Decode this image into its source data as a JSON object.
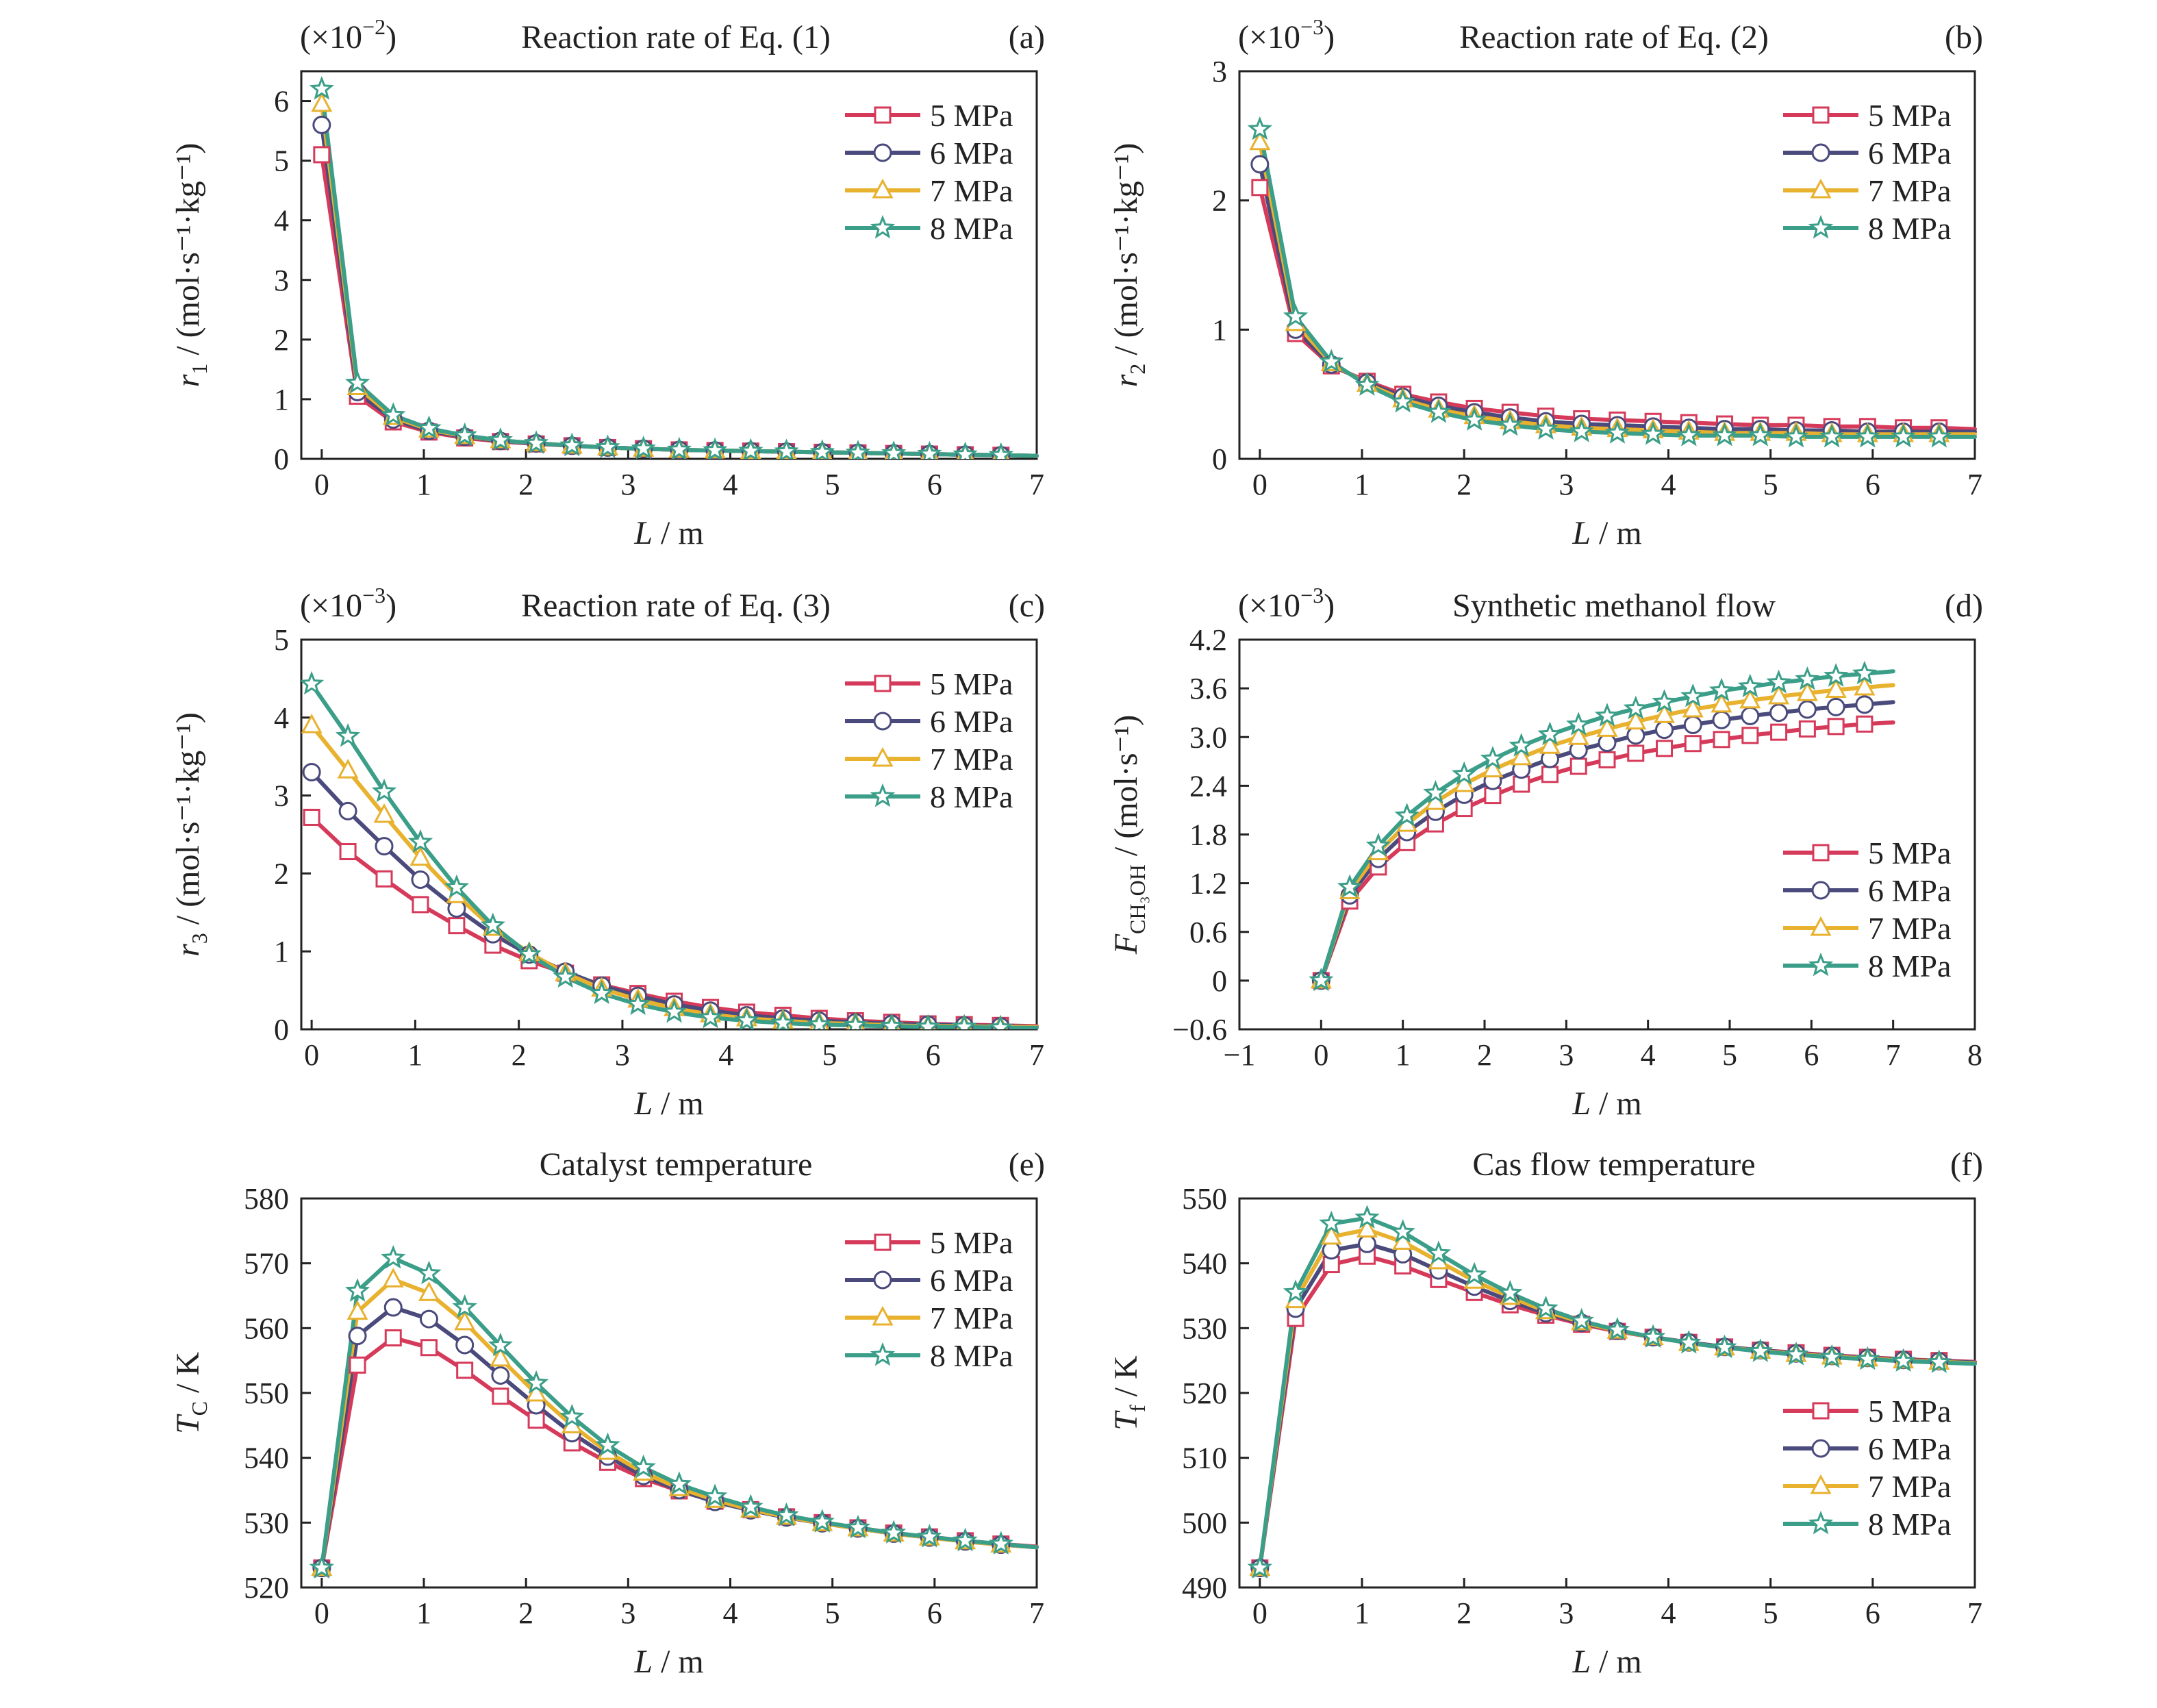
{
  "chart_data": [
    {
      "type": "line",
      "panel_label": "(a)",
      "title": "Reaction rate of Eq. (1)",
      "multiplier_main": "(×10",
      "multiplier_exp": "−2",
      "multiplier_close": ")",
      "ylabel_var": "r",
      "ylabel_sub": "1",
      "ylabel_rest": " / (mol·s⁻¹·kg⁻¹)",
      "xlabel_var": "L",
      "xlabel_rest": " / m",
      "xlim": [
        -0.2,
        7
      ],
      "ylim": [
        0,
        6.5
      ],
      "xticks": [
        0,
        1,
        2,
        3,
        4,
        5,
        6,
        7
      ],
      "yticks": [
        0,
        1,
        2,
        3,
        4,
        5,
        6
      ],
      "legend_position": "top-right",
      "x": [
        0,
        0.35,
        0.7,
        1.05,
        1.4,
        1.75,
        2.1,
        2.45,
        2.8,
        3.15,
        3.5,
        3.85,
        4.2,
        4.55,
        4.9,
        5.25,
        5.6,
        5.95,
        6.3,
        6.65,
        7.0
      ],
      "series": [
        {
          "name": "5 MPa",
          "color": "#d63a5a",
          "marker": "square",
          "values": [
            5.1,
            1.05,
            0.62,
            0.45,
            0.35,
            0.29,
            0.25,
            0.22,
            0.19,
            0.17,
            0.15,
            0.14,
            0.13,
            0.12,
            0.11,
            0.1,
            0.09,
            0.08,
            0.07,
            0.06,
            0.05
          ]
        },
        {
          "name": "6 MPa",
          "color": "#4a4a7c",
          "marker": "circle",
          "values": [
            5.6,
            1.12,
            0.66,
            0.47,
            0.37,
            0.3,
            0.26,
            0.22,
            0.19,
            0.17,
            0.15,
            0.14,
            0.13,
            0.12,
            0.11,
            0.1,
            0.09,
            0.08,
            0.07,
            0.06,
            0.05
          ]
        },
        {
          "name": "7 MPa",
          "color": "#e8b12e",
          "marker": "triangle",
          "values": [
            5.95,
            1.2,
            0.7,
            0.49,
            0.38,
            0.31,
            0.26,
            0.22,
            0.19,
            0.17,
            0.15,
            0.14,
            0.13,
            0.12,
            0.11,
            0.1,
            0.09,
            0.08,
            0.07,
            0.06,
            0.05
          ]
        },
        {
          "name": "8 MPa",
          "color": "#3a9e88",
          "marker": "star",
          "values": [
            6.2,
            1.27,
            0.73,
            0.51,
            0.39,
            0.31,
            0.26,
            0.22,
            0.19,
            0.17,
            0.15,
            0.14,
            0.13,
            0.12,
            0.11,
            0.1,
            0.09,
            0.08,
            0.07,
            0.06,
            0.05
          ]
        }
      ]
    },
    {
      "type": "line",
      "panel_label": "(b)",
      "title": "Reaction rate of Eq. (2)",
      "multiplier_main": "(×10",
      "multiplier_exp": "−3",
      "multiplier_close": ")",
      "ylabel_var": "r",
      "ylabel_sub": "2",
      "ylabel_rest": " / (mol·s⁻¹·kg⁻¹)",
      "xlabel_var": "L",
      "xlabel_rest": " / m",
      "xlim": [
        -0.2,
        7
      ],
      "ylim": [
        0,
        3
      ],
      "xticks": [
        0,
        1,
        2,
        3,
        4,
        5,
        6,
        7
      ],
      "yticks": [
        0,
        1,
        2,
        3
      ],
      "legend_position": "top-right",
      "x": [
        0,
        0.35,
        0.7,
        1.05,
        1.4,
        1.75,
        2.1,
        2.45,
        2.8,
        3.15,
        3.5,
        3.85,
        4.2,
        4.55,
        4.9,
        5.25,
        5.6,
        5.95,
        6.3,
        6.65,
        7.0
      ],
      "series": [
        {
          "name": "5 MPa",
          "color": "#d63a5a",
          "marker": "square",
          "values": [
            2.1,
            0.97,
            0.72,
            0.6,
            0.5,
            0.44,
            0.39,
            0.36,
            0.33,
            0.31,
            0.3,
            0.29,
            0.28,
            0.27,
            0.26,
            0.26,
            0.25,
            0.25,
            0.24,
            0.24,
            0.23
          ]
        },
        {
          "name": "6 MPa",
          "color": "#4a4a7c",
          "marker": "circle",
          "values": [
            2.28,
            1.0,
            0.73,
            0.59,
            0.48,
            0.41,
            0.36,
            0.32,
            0.29,
            0.27,
            0.26,
            0.25,
            0.24,
            0.23,
            0.23,
            0.22,
            0.22,
            0.21,
            0.21,
            0.21,
            0.21
          ]
        },
        {
          "name": "7 MPa",
          "color": "#e8b12e",
          "marker": "triangle",
          "values": [
            2.45,
            1.05,
            0.74,
            0.58,
            0.46,
            0.38,
            0.33,
            0.29,
            0.26,
            0.24,
            0.23,
            0.22,
            0.21,
            0.2,
            0.2,
            0.2,
            0.19,
            0.19,
            0.19,
            0.19,
            0.19
          ]
        },
        {
          "name": "8 MPa",
          "color": "#3a9e88",
          "marker": "star",
          "values": [
            2.55,
            1.1,
            0.75,
            0.57,
            0.44,
            0.36,
            0.3,
            0.26,
            0.23,
            0.21,
            0.2,
            0.19,
            0.18,
            0.18,
            0.18,
            0.17,
            0.17,
            0.17,
            0.17,
            0.17,
            0.17
          ]
        }
      ]
    },
    {
      "type": "line",
      "panel_label": "(c)",
      "title": "Reaction rate of Eq. (3)",
      "multiplier_main": "(×10",
      "multiplier_exp": "−3",
      "multiplier_close": ")",
      "ylabel_var": "r",
      "ylabel_sub": "3",
      "ylabel_rest": " / (mol·s⁻¹·kg⁻¹)",
      "xlabel_var": "L",
      "xlabel_rest": " / m",
      "xlim": [
        -0.1,
        7
      ],
      "ylim": [
        0,
        5
      ],
      "xticks": [
        0,
        1,
        2,
        3,
        4,
        5,
        6,
        7
      ],
      "yticks": [
        0,
        1,
        2,
        3,
        4,
        5
      ],
      "legend_position": "top-right",
      "x": [
        0,
        0.35,
        0.7,
        1.05,
        1.4,
        1.75,
        2.1,
        2.45,
        2.8,
        3.15,
        3.5,
        3.85,
        4.2,
        4.55,
        4.9,
        5.25,
        5.6,
        5.95,
        6.3,
        6.65,
        7.0
      ],
      "series": [
        {
          "name": "5 MPa",
          "color": "#d63a5a",
          "marker": "square",
          "values": [
            2.72,
            2.28,
            1.93,
            1.6,
            1.33,
            1.08,
            0.88,
            0.72,
            0.57,
            0.46,
            0.36,
            0.28,
            0.22,
            0.18,
            0.14,
            0.11,
            0.09,
            0.07,
            0.06,
            0.05,
            0.04
          ]
        },
        {
          "name": "6 MPa",
          "color": "#4a4a7c",
          "marker": "circle",
          "values": [
            3.3,
            2.8,
            2.35,
            1.92,
            1.55,
            1.22,
            0.96,
            0.74,
            0.56,
            0.43,
            0.32,
            0.24,
            0.18,
            0.14,
            0.11,
            0.09,
            0.07,
            0.06,
            0.05,
            0.04,
            0.03
          ]
        },
        {
          "name": "7 MPa",
          "color": "#e8b12e",
          "marker": "triangle",
          "values": [
            3.9,
            3.32,
            2.75,
            2.2,
            1.72,
            1.3,
            0.98,
            0.72,
            0.52,
            0.38,
            0.27,
            0.19,
            0.14,
            0.11,
            0.08,
            0.07,
            0.05,
            0.04,
            0.04,
            0.03,
            0.03
          ]
        },
        {
          "name": "8 MPa",
          "color": "#3a9e88",
          "marker": "star",
          "values": [
            4.43,
            3.76,
            3.05,
            2.4,
            1.82,
            1.33,
            0.96,
            0.67,
            0.46,
            0.32,
            0.22,
            0.15,
            0.11,
            0.08,
            0.06,
            0.05,
            0.04,
            0.03,
            0.03,
            0.02,
            0.02
          ]
        }
      ]
    },
    {
      "type": "line",
      "panel_label": "(d)",
      "title": "Synthetic methanol flow",
      "multiplier_main": "(×10",
      "multiplier_exp": "−3",
      "multiplier_close": ")",
      "ylabel_var": "F",
      "ylabel_sub": "CH₃OH",
      "ylabel_rest": " / (mol·s⁻¹)",
      "xlabel_var": "L",
      "xlabel_rest": " / m",
      "xlim": [
        -1,
        8
      ],
      "ylim": [
        -0.6,
        4.2
      ],
      "xticks": [
        -1,
        0,
        1,
        2,
        3,
        4,
        5,
        6,
        7,
        8
      ],
      "xtick_labels": [
        "−1",
        "0",
        "1",
        "2",
        "3",
        "4",
        "5",
        "6",
        "7",
        "8"
      ],
      "yticks": [
        -0.6,
        0,
        0.6,
        1.2,
        1.8,
        2.4,
        3.0,
        3.6,
        4.2
      ],
      "ytick_labels": [
        "−0.6",
        "0",
        "0.6",
        "1.2",
        "1.8",
        "2.4",
        "3.0",
        "3.6",
        "4.2"
      ],
      "legend_position": "bottom-right",
      "x": [
        0,
        0.35,
        0.7,
        1.05,
        1.4,
        1.75,
        2.1,
        2.45,
        2.8,
        3.15,
        3.5,
        3.85,
        4.2,
        4.55,
        4.9,
        5.25,
        5.6,
        5.95,
        6.3,
        6.65,
        7.0
      ],
      "series": [
        {
          "name": "5 MPa",
          "color": "#d63a5a",
          "marker": "square",
          "values": [
            0,
            0.98,
            1.4,
            1.7,
            1.93,
            2.12,
            2.28,
            2.42,
            2.54,
            2.64,
            2.72,
            2.8,
            2.86,
            2.92,
            2.97,
            3.02,
            3.06,
            3.1,
            3.13,
            3.16,
            3.18
          ]
        },
        {
          "name": "6 MPa",
          "color": "#4a4a7c",
          "marker": "circle",
          "values": [
            0,
            1.05,
            1.5,
            1.83,
            2.08,
            2.29,
            2.46,
            2.6,
            2.73,
            2.84,
            2.93,
            3.02,
            3.09,
            3.15,
            3.21,
            3.26,
            3.3,
            3.34,
            3.37,
            3.4,
            3.43
          ]
        },
        {
          "name": "7 MPa",
          "color": "#e8b12e",
          "marker": "triangle",
          "values": [
            0,
            1.1,
            1.58,
            1.93,
            2.2,
            2.42,
            2.6,
            2.75,
            2.89,
            3.0,
            3.1,
            3.19,
            3.27,
            3.34,
            3.4,
            3.45,
            3.5,
            3.54,
            3.58,
            3.61,
            3.64
          ]
        },
        {
          "name": "8 MPa",
          "color": "#3a9e88",
          "marker": "star",
          "values": [
            0,
            1.15,
            1.66,
            2.03,
            2.31,
            2.54,
            2.73,
            2.89,
            3.03,
            3.15,
            3.26,
            3.35,
            3.43,
            3.5,
            3.57,
            3.62,
            3.67,
            3.71,
            3.75,
            3.78,
            3.81
          ]
        }
      ]
    },
    {
      "type": "line",
      "panel_label": "(e)",
      "title": "Catalyst temperature",
      "ylabel_var": "T",
      "ylabel_sub": "C",
      "ylabel_rest": " / K",
      "xlabel_var": "L",
      "xlabel_rest": " / m",
      "xlim": [
        -0.2,
        7
      ],
      "ylim": [
        520,
        580
      ],
      "xticks": [
        0,
        1,
        2,
        3,
        4,
        5,
        6,
        7
      ],
      "yticks": [
        520,
        530,
        540,
        550,
        560,
        570,
        580
      ],
      "legend_position": "top-right",
      "x": [
        0,
        0.35,
        0.7,
        1.05,
        1.4,
        1.75,
        2.1,
        2.45,
        2.8,
        3.15,
        3.5,
        3.85,
        4.2,
        4.55,
        4.9,
        5.25,
        5.6,
        5.95,
        6.3,
        6.65,
        7.0
      ],
      "series": [
        {
          "name": "5 MPa",
          "color": "#d63a5a",
          "marker": "square",
          "values": [
            523,
            554.3,
            558.5,
            557,
            553.5,
            549.5,
            545.8,
            542.3,
            539.3,
            536.8,
            534.9,
            533.3,
            532,
            530.9,
            530,
            529.2,
            528.4,
            527.8,
            527.2,
            526.7,
            526.3
          ]
        },
        {
          "name": "6 MPa",
          "color": "#4a4a7c",
          "marker": "circle",
          "values": [
            523,
            558.8,
            563.2,
            561.4,
            557.4,
            552.7,
            548.1,
            543.8,
            540.2,
            537.2,
            535,
            533.2,
            531.9,
            530.8,
            529.9,
            529.1,
            528.3,
            527.7,
            527.1,
            526.6,
            526.2
          ]
        },
        {
          "name": "7 MPa",
          "color": "#e8b12e",
          "marker": "triangle",
          "values": [
            523,
            562.5,
            567.5,
            565.4,
            560.9,
            555.3,
            549.9,
            545,
            540.9,
            537.7,
            535.3,
            533.5,
            532,
            530.9,
            529.9,
            529.1,
            528.3,
            527.7,
            527.1,
            526.6,
            526.2
          ]
        },
        {
          "name": "8 MPa",
          "color": "#3a9e88",
          "marker": "star",
          "values": [
            523,
            565.7,
            570.8,
            568.4,
            563.2,
            557.3,
            551.5,
            546.3,
            541.9,
            538.5,
            535.9,
            534,
            532.4,
            531.1,
            530.1,
            529.2,
            528.4,
            527.8,
            527.2,
            526.7,
            526.2
          ]
        }
      ]
    },
    {
      "type": "line",
      "panel_label": "(f)",
      "title": "Cas flow temperature",
      "ylabel_var": "T",
      "ylabel_sub": "f",
      "ylabel_rest": " / K",
      "xlabel_var": "L",
      "xlabel_rest": " / m",
      "xlim": [
        -0.2,
        7
      ],
      "ylim": [
        490,
        550
      ],
      "xticks": [
        0,
        1,
        2,
        3,
        4,
        5,
        6,
        7
      ],
      "yticks": [
        490,
        500,
        510,
        520,
        530,
        540,
        550
      ],
      "legend_position": "bottom-right",
      "x": [
        0,
        0.35,
        0.7,
        1.05,
        1.4,
        1.75,
        2.1,
        2.45,
        2.8,
        3.15,
        3.5,
        3.85,
        4.2,
        4.55,
        4.9,
        5.25,
        5.6,
        5.95,
        6.3,
        6.65,
        7.0
      ],
      "series": [
        {
          "name": "5 MPa",
          "color": "#d63a5a",
          "marker": "square",
          "values": [
            493,
            531.5,
            539.8,
            541.1,
            539.6,
            537.5,
            535.5,
            533.6,
            532,
            530.6,
            529.5,
            528.6,
            527.8,
            527.1,
            526.6,
            526.2,
            525.8,
            525.5,
            525.2,
            525,
            524.8
          ]
        },
        {
          "name": "6 MPa",
          "color": "#4a4a7c",
          "marker": "circle",
          "values": [
            493,
            533,
            542,
            543,
            541.4,
            538.9,
            536.4,
            534.2,
            532.3,
            530.8,
            529.6,
            528.6,
            527.8,
            527.1,
            526.6,
            526.1,
            525.7,
            525.4,
            525.1,
            524.9,
            524.7
          ]
        },
        {
          "name": "7 MPa",
          "color": "#e8b12e",
          "marker": "triangle",
          "values": [
            493,
            534.3,
            544.1,
            545.2,
            543.3,
            540.3,
            537.3,
            534.8,
            532.6,
            530.9,
            529.6,
            528.6,
            527.7,
            527,
            526.5,
            526,
            525.6,
            525.3,
            525,
            524.8,
            524.6
          ]
        },
        {
          "name": "8 MPa",
          "color": "#3a9e88",
          "marker": "star",
          "values": [
            493,
            535.5,
            546.1,
            547,
            544.8,
            541.5,
            538.2,
            535.4,
            533,
            531.1,
            529.7,
            528.6,
            527.7,
            527,
            526.4,
            525.9,
            525.5,
            525.2,
            524.9,
            524.7,
            524.5
          ]
        }
      ]
    }
  ]
}
